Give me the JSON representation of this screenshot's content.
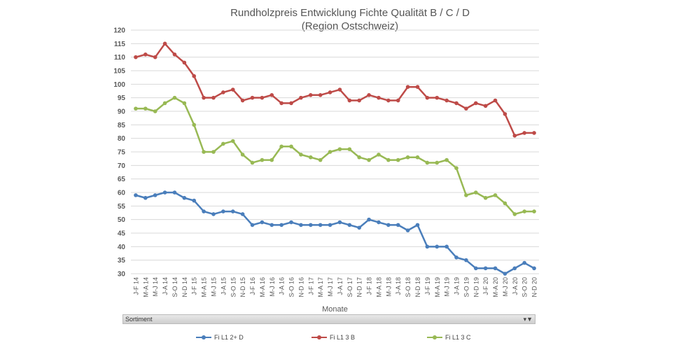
{
  "chart_data": {
    "type": "line",
    "title": "Rundholzpreis Entwicklung Fichte Qualität B / C / D",
    "subtitle": "(Region Ostschweiz)",
    "xlabel": "Monate",
    "ylabel": "",
    "ylim": [
      30,
      120
    ],
    "yticks": [
      30,
      35,
      40,
      45,
      50,
      55,
      60,
      65,
      70,
      75,
      80,
      85,
      90,
      95,
      100,
      105,
      110,
      115,
      120
    ],
    "grid": true,
    "legend_position": "bottom",
    "categories": [
      "J-F 14",
      "M-A 14",
      "M-J 14",
      "J-A 14",
      "S-O 14",
      "N-D 14",
      "J-F 15",
      "M-A 15",
      "M-J 15",
      "J-A 15",
      "S-O 15",
      "N-D 15",
      "J-F 16",
      "M-A 16",
      "M-J 16",
      "J-A 16",
      "S-O 16",
      "N-D 16",
      "J-F 17",
      "M-A 17",
      "M-J 17",
      "J-A 17",
      "S-O 17",
      "N-D 17",
      "J-F 18",
      "M-A 18",
      "M-J 18",
      "J-A 18",
      "S-O 18",
      "N-D 18",
      "J-F 19",
      "M-A 19",
      "M-J 19",
      "J-A 19",
      "S-O 19",
      "N-D 19",
      "J-F 20",
      "M-A 20",
      "M-J 20",
      "J-A 20",
      "S-O 20",
      "N-D 20"
    ],
    "series": [
      {
        "name": "Fi L1 2+ D",
        "color": "#4a7ebb",
        "values": [
          59,
          58,
          59,
          60,
          60,
          58,
          57,
          53,
          52,
          53,
          53,
          52,
          48,
          49,
          48,
          48,
          49,
          48,
          48,
          48,
          48,
          49,
          48,
          47,
          50,
          49,
          48,
          48,
          46,
          48,
          40,
          40,
          40,
          36,
          35,
          32,
          32,
          32,
          30,
          32,
          34,
          32
        ]
      },
      {
        "name": "Fi L1 3 B",
        "color": "#be4b48",
        "values": [
          110,
          111,
          110,
          115,
          111,
          108,
          103,
          95,
          95,
          97,
          98,
          94,
          95,
          95,
          96,
          93,
          93,
          95,
          96,
          96,
          97,
          98,
          94,
          94,
          96,
          95,
          94,
          94,
          99,
          99,
          95,
          95,
          94,
          93,
          91,
          93,
          92,
          94,
          89,
          81,
          82,
          82
        ]
      },
      {
        "name": "Fi L1 3 C",
        "color": "#98b954",
        "values": [
          91,
          91,
          90,
          93,
          95,
          93,
          85,
          75,
          75,
          78,
          79,
          74,
          71,
          72,
          72,
          77,
          77,
          74,
          73,
          72,
          75,
          76,
          76,
          73,
          72,
          74,
          72,
          72,
          73,
          73,
          71,
          71,
          72,
          69,
          59,
          60,
          58,
          59,
          56,
          52,
          53,
          53
        ]
      }
    ]
  },
  "filter_bar": {
    "label": "Sortiment",
    "icon": "filter-icon",
    "icon_glyph": "▾▼"
  }
}
